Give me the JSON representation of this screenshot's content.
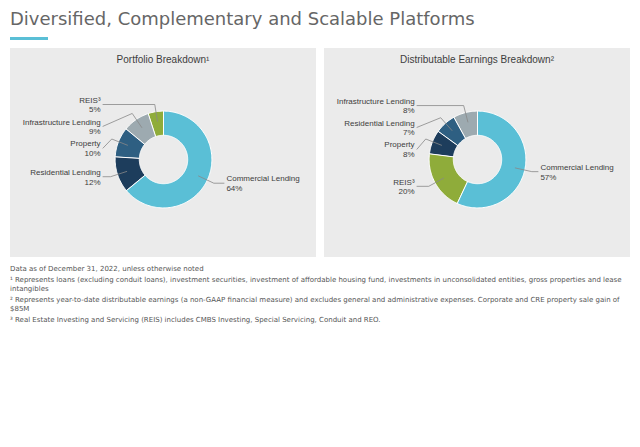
{
  "title": "Diversified, Complementary and Scalable Platforms",
  "annotations": [
    "Data as of December 31, 2022, unless otherwise noted",
    "¹ Represents loans (excluding conduit loans), investment securities, investment of affordable housing fund, investments in unconsolidated entities, gross properties and lease intangibles",
    "² Represents year-to-date distributable earnings (a non-GAAP financial measure) and excludes general and administrative expenses. Corporate and CRE property sale gain of $85M",
    "³ Real Estate Investing and Servicing (REIS) includes CMBS Investing, Special Servicing, Conduit and REO."
  ],
  "chart_data": [
    {
      "type": "pie",
      "title": "Portfolio Breakdown¹",
      "categories": [
        "Commercial Lending",
        "Residential Lending",
        "Property",
        "Infrastructure Lending",
        "REIS³"
      ],
      "values": [
        64,
        12,
        10,
        9,
        5
      ],
      "value_labels": [
        "64%",
        "12%",
        "10%",
        "9%",
        "5%"
      ],
      "colors": [
        "#5abfd6",
        "#1d3d5c",
        "#2e5f82",
        "#9daab0",
        "#8fac3a"
      ],
      "data_labels": true
    },
    {
      "type": "pie",
      "title": "Distributable Earnings Breakdown²",
      "categories": [
        "Commercial Lending",
        "REIS³",
        "Property",
        "Residential Lending",
        "Infrastructure Lending"
      ],
      "values": [
        57,
        20,
        8,
        7,
        8
      ],
      "value_labels": [
        "57%",
        "20%",
        "8%",
        "7%",
        "8%"
      ],
      "colors": [
        "#5abfd6",
        "#8fac3a",
        "#1d3d5c",
        "#2e5f82",
        "#9daab0"
      ],
      "data_labels": true
    }
  ]
}
